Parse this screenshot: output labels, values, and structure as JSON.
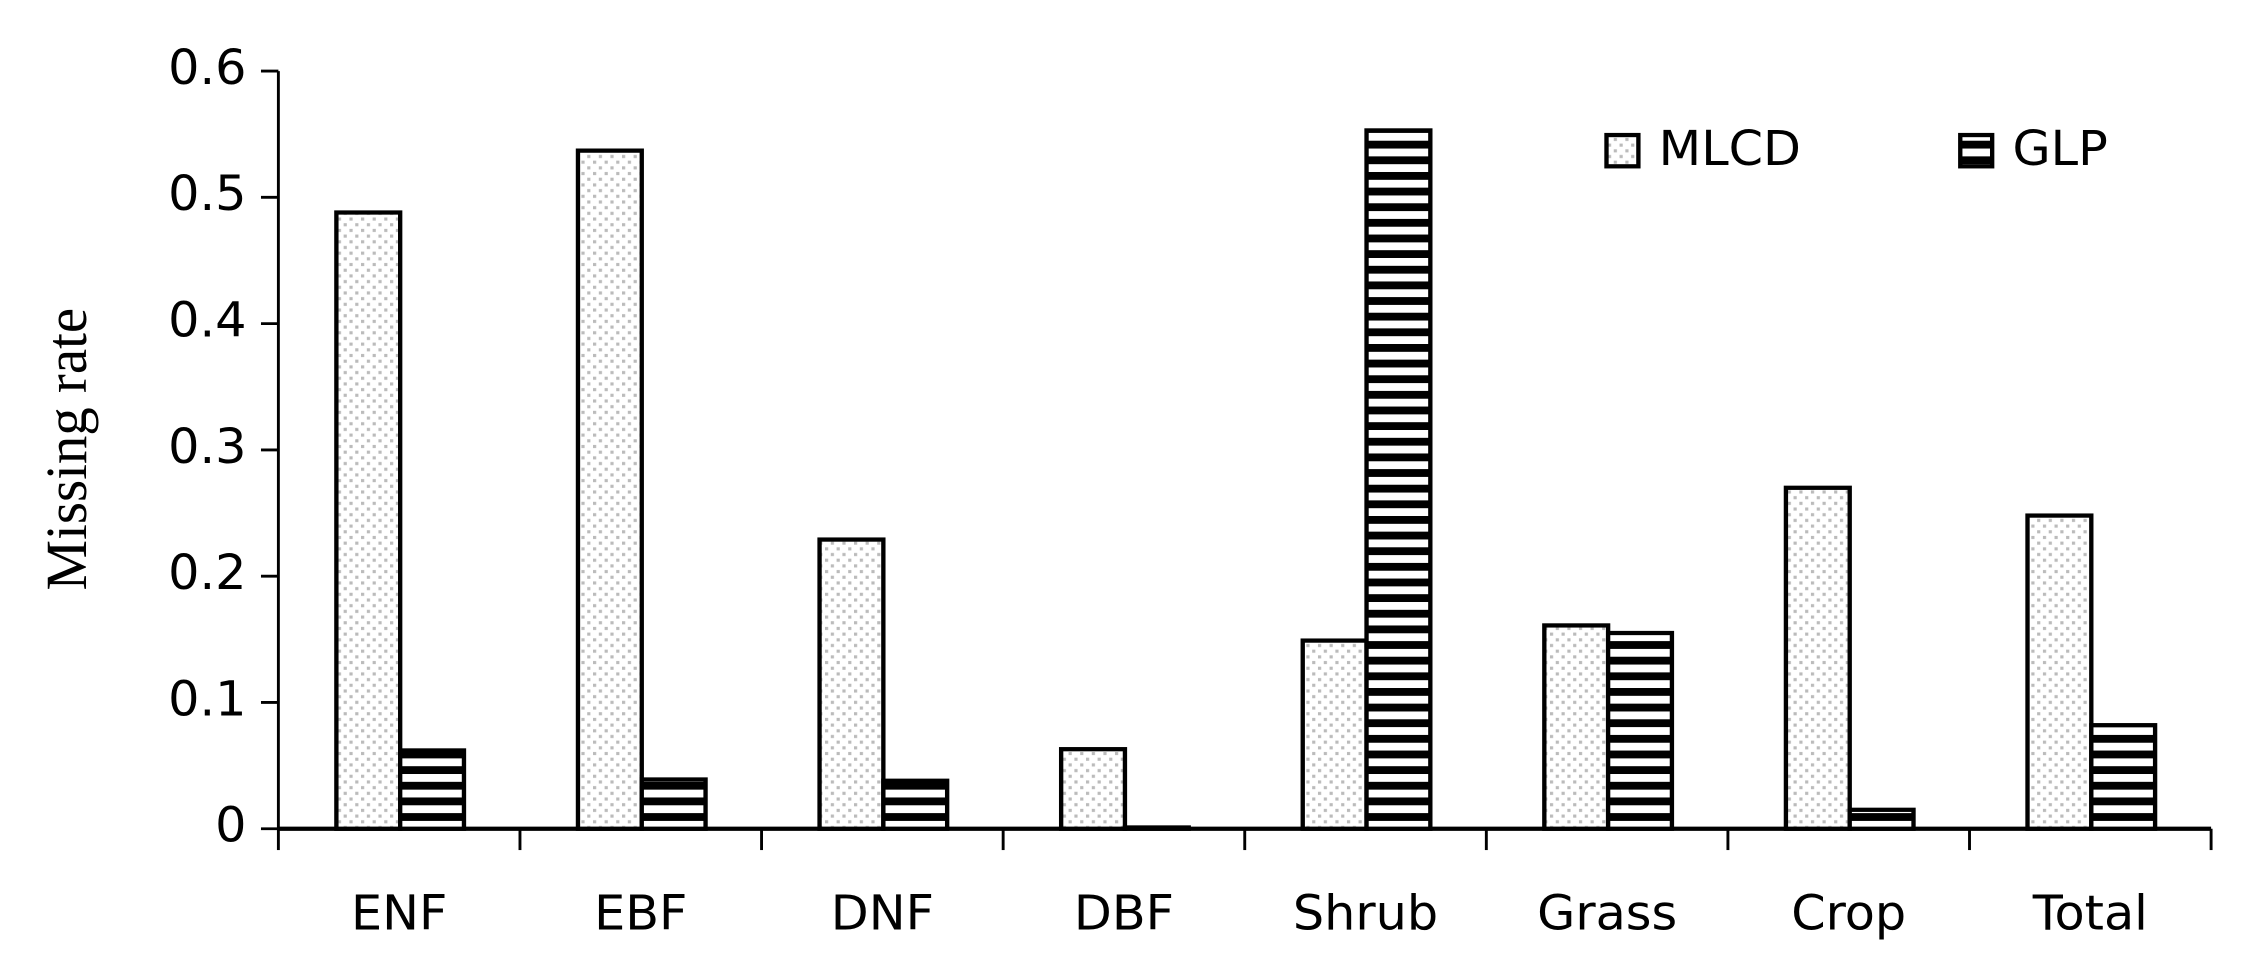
{
  "chart_data": {
    "type": "bar",
    "y_label": "Missing rate",
    "categories": [
      "ENF",
      "EBF",
      "DNF",
      "DBF",
      "Shrub",
      "Grass",
      "Crop",
      "Total"
    ],
    "series": [
      {
        "name": "MLCD",
        "color": "#000000",
        "pattern": "dots",
        "values": [
          0.488,
          0.537,
          0.229,
          0.063,
          0.149,
          0.161,
          0.27,
          0.248
        ]
      },
      {
        "name": "GLP",
        "color": "#000000",
        "pattern": "stripes",
        "values": [
          0.062,
          0.039,
          0.038,
          0.001,
          0.553,
          0.155,
          0.015,
          0.082
        ]
      }
    ],
    "ylim": [
      0,
      0.6
    ],
    "yticks": [
      0,
      0.1,
      0.2,
      0.3,
      0.4,
      0.5,
      0.6
    ],
    "grid": false,
    "legend": "upper right"
  }
}
